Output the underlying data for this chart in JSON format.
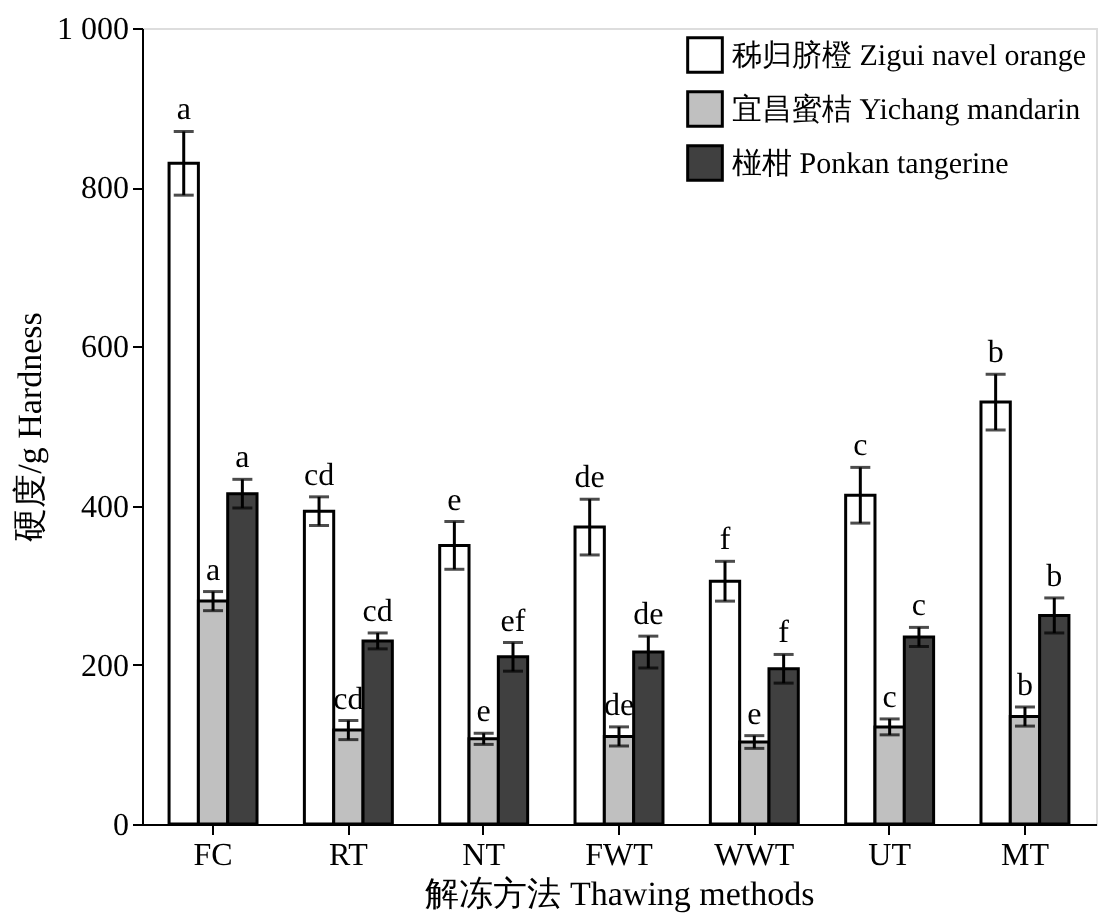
{
  "chart_data": {
    "type": "bar",
    "xlabel": "解冻方法 Thawing methods",
    "ylabel": "硬度/g Hardness",
    "categories": [
      "FC",
      "RT",
      "NT",
      "FWT",
      "WWT",
      "UT",
      "MT"
    ],
    "series": [
      {
        "name": "秭归脐橙 Zigui navel orange",
        "color": "#ffffff",
        "values": [
          830,
          393,
          350,
          373,
          305,
          413,
          530
        ],
        "errors": [
          40,
          18,
          30,
          35,
          25,
          35,
          35
        ]
      },
      {
        "name": "宜昌蜜桔 Yichang mandarin",
        "color": "#c0c0c0",
        "values": [
          280,
          118,
          107,
          110,
          103,
          122,
          135
        ],
        "errors": [
          12,
          12,
          7,
          12,
          8,
          10,
          12
        ]
      },
      {
        "name": "椪柑 Ponkan tangerine",
        "color": "#404040",
        "values": [
          415,
          230,
          210,
          216,
          195,
          235,
          262
        ],
        "errors": [
          18,
          10,
          18,
          20,
          18,
          12,
          22
        ]
      }
    ],
    "ylim": [
      0,
      1000
    ],
    "yticks": [
      0,
      200,
      400,
      600,
      800,
      {
        "value": 1000,
        "label": "1 000"
      }
    ],
    "grid": false,
    "legend": "top right",
    "annotations": [
      "a",
      "cd",
      "e",
      "de",
      "f",
      "c",
      "b",
      "a",
      "cd",
      "e",
      "de",
      "e",
      "c",
      "b",
      "a",
      "cd",
      "ef",
      "de",
      "f",
      "c",
      "b"
    ]
  }
}
